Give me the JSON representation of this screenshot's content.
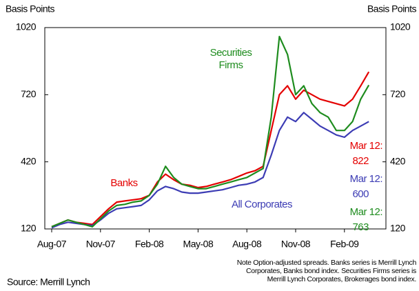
{
  "chart_data": {
    "type": "line",
    "y_axis_label": "Basis Points",
    "y2_axis_label": "Basis Points",
    "categories": [
      "Aug-07",
      null,
      null,
      null,
      null,
      null,
      "Nov-07",
      null,
      null,
      null,
      null,
      null,
      "Feb-08",
      null,
      null,
      null,
      null,
      null,
      "May-08",
      null,
      null,
      null,
      null,
      null,
      "Aug-08",
      null,
      null,
      null,
      null,
      null,
      "Nov-08",
      null,
      null,
      null,
      null,
      null,
      "Feb-09",
      null,
      null,
      null
    ],
    "series": [
      {
        "name": "Banks",
        "color": "#e40000",
        "end_value_label": true,
        "values": [
          130,
          145,
          160,
          150,
          145,
          140,
          175,
          210,
          240,
          245,
          250,
          255,
          270,
          330,
          365,
          340,
          320,
          315,
          305,
          310,
          320,
          330,
          340,
          355,
          370,
          380,
          400,
          560,
          720,
          760,
          700,
          740,
          720,
          700,
          690,
          680,
          670,
          700,
          760,
          822
        ]
      },
      {
        "name": "All Corporates",
        "color": "#3c3cb4",
        "end_value_label": true,
        "values": [
          125,
          140,
          150,
          145,
          140,
          135,
          160,
          190,
          210,
          215,
          220,
          225,
          250,
          290,
          310,
          300,
          285,
          280,
          280,
          285,
          290,
          295,
          305,
          315,
          320,
          330,
          350,
          450,
          560,
          620,
          600,
          640,
          610,
          580,
          560,
          540,
          530,
          560,
          580,
          600
        ]
      },
      {
        "name": "Securities Firms",
        "color": "#1e8c1e",
        "end_value_label": true,
        "values": [
          130,
          145,
          160,
          150,
          140,
          130,
          165,
          200,
          225,
          230,
          240,
          245,
          270,
          320,
          400,
          350,
          320,
          310,
          300,
          300,
          310,
          320,
          330,
          340,
          350,
          370,
          390,
          620,
          980,
          900,
          720,
          760,
          680,
          640,
          620,
          560,
          560,
          600,
          700,
          763
        ]
      }
    ],
    "end_date_label": "Mar 12:",
    "ylim": [
      120,
      1020
    ],
    "yticks": [
      120,
      420,
      720,
      1020
    ],
    "y2lim": [
      120,
      1020
    ],
    "y2ticks": [
      120,
      420,
      720,
      1020
    ],
    "grid": false,
    "note_lines": [
      "Note Option-adjusted spreads. Banks series is Merrill Lynch",
      "Corporates, Banks bond index. Securities Firms series is",
      "Merrill Lynch Corporates, Brokerages bond index."
    ],
    "source": "Source: Merrill Lynch"
  }
}
